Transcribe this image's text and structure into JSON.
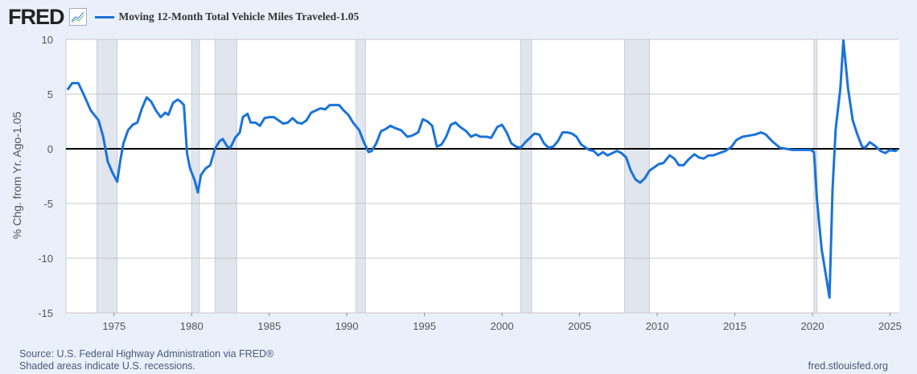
{
  "header": {
    "logo": "FRED",
    "logo_icon": "line-chart-icon"
  },
  "chart_data": {
    "type": "line",
    "title": "",
    "legend": [
      {
        "label": "Moving 12-Month Total Vehicle Miles Traveled-1.05",
        "color": "#1a73d9"
      }
    ],
    "legend_placement": "top-left",
    "xlabel": "",
    "ylabel": "% Chg. from Yr. Ago-1.05",
    "xlim": [
      1971.9,
      2025.6
    ],
    "ylim": [
      -15,
      10
    ],
    "yticks": [
      10,
      5,
      0,
      -5,
      -10,
      -15
    ],
    "ytick_labels": [
      "10",
      "5",
      "0",
      "-5",
      "-10",
      "-15"
    ],
    "xticks": [
      1975,
      1980,
      1985,
      1990,
      1995,
      2000,
      2005,
      2010,
      2015,
      2020,
      2025
    ],
    "xtick_labels": [
      "1975",
      "1980",
      "1985",
      "1990",
      "1995",
      "2000",
      "2005",
      "2010",
      "2015",
      "2020",
      "2025"
    ],
    "grid": true,
    "recessions": [
      [
        1973.9,
        1975.2
      ],
      [
        1980.0,
        1980.5
      ],
      [
        1981.5,
        1982.9
      ],
      [
        1990.6,
        1991.2
      ],
      [
        2001.2,
        2001.9
      ],
      [
        2007.9,
        2009.5
      ],
      [
        2020.1,
        2020.3
      ]
    ],
    "series": [
      {
        "name": "Moving 12-Month Total Vehicle Miles Traveled-1.05",
        "color": "#1a73d9",
        "points": [
          [
            1972.0,
            5.4
          ],
          [
            1972.3,
            6.0
          ],
          [
            1972.7,
            6.0
          ],
          [
            1973.0,
            5.1
          ],
          [
            1973.5,
            3.5
          ],
          [
            1974.0,
            2.6
          ],
          [
            1974.3,
            1.1
          ],
          [
            1974.6,
            -1.2
          ],
          [
            1974.9,
            -2.2
          ],
          [
            1975.2,
            -3.0
          ],
          [
            1975.4,
            -1.1
          ],
          [
            1975.6,
            0.5
          ],
          [
            1975.9,
            1.7
          ],
          [
            1976.2,
            2.2
          ],
          [
            1976.5,
            2.4
          ],
          [
            1976.8,
            3.7
          ],
          [
            1977.1,
            4.7
          ],
          [
            1977.4,
            4.3
          ],
          [
            1977.7,
            3.5
          ],
          [
            1978.0,
            2.9
          ],
          [
            1978.3,
            3.3
          ],
          [
            1978.5,
            3.1
          ],
          [
            1978.8,
            4.2
          ],
          [
            1979.1,
            4.5
          ],
          [
            1979.3,
            4.3
          ],
          [
            1979.5,
            4.0
          ],
          [
            1979.7,
            -0.4
          ],
          [
            1979.9,
            -1.8
          ],
          [
            1980.2,
            -2.9
          ],
          [
            1980.4,
            -4.0
          ],
          [
            1980.6,
            -2.4
          ],
          [
            1980.9,
            -1.8
          ],
          [
            1981.2,
            -1.5
          ],
          [
            1981.5,
            0.0
          ],
          [
            1981.8,
            0.7
          ],
          [
            1982.0,
            0.9
          ],
          [
            1982.3,
            0.2
          ],
          [
            1982.5,
            0.1
          ],
          [
            1982.8,
            1.0
          ],
          [
            1983.1,
            1.5
          ],
          [
            1983.3,
            2.9
          ],
          [
            1983.6,
            3.2
          ],
          [
            1983.8,
            2.4
          ],
          [
            1984.1,
            2.4
          ],
          [
            1984.4,
            2.1
          ],
          [
            1984.7,
            2.8
          ],
          [
            1985.0,
            2.9
          ],
          [
            1985.3,
            2.9
          ],
          [
            1985.6,
            2.6
          ],
          [
            1985.9,
            2.3
          ],
          [
            1986.2,
            2.4
          ],
          [
            1986.5,
            2.8
          ],
          [
            1986.8,
            2.4
          ],
          [
            1987.1,
            2.3
          ],
          [
            1987.4,
            2.6
          ],
          [
            1987.7,
            3.3
          ],
          [
            1988.0,
            3.5
          ],
          [
            1988.3,
            3.7
          ],
          [
            1988.6,
            3.6
          ],
          [
            1988.9,
            4.0
          ],
          [
            1989.1,
            4.0
          ],
          [
            1989.5,
            4.0
          ],
          [
            1989.8,
            3.5
          ],
          [
            1990.1,
            3.1
          ],
          [
            1990.4,
            2.4
          ],
          [
            1990.8,
            1.7
          ],
          [
            1991.1,
            0.6
          ],
          [
            1991.4,
            -0.3
          ],
          [
            1991.6,
            -0.2
          ],
          [
            1991.9,
            0.5
          ],
          [
            1992.2,
            1.6
          ],
          [
            1992.5,
            1.8
          ],
          [
            1992.8,
            2.1
          ],
          [
            1993.1,
            1.9
          ],
          [
            1993.5,
            1.7
          ],
          [
            1993.9,
            1.1
          ],
          [
            1994.2,
            1.2
          ],
          [
            1994.6,
            1.5
          ],
          [
            1994.9,
            2.7
          ],
          [
            1995.2,
            2.5
          ],
          [
            1995.5,
            2.1
          ],
          [
            1995.8,
            0.2
          ],
          [
            1996.1,
            0.4
          ],
          [
            1996.4,
            1.1
          ],
          [
            1996.7,
            2.2
          ],
          [
            1997.0,
            2.4
          ],
          [
            1997.3,
            2.0
          ],
          [
            1997.7,
            1.6
          ],
          [
            1998.0,
            1.1
          ],
          [
            1998.3,
            1.3
          ],
          [
            1998.6,
            1.1
          ],
          [
            1999.0,
            1.1
          ],
          [
            1999.3,
            1.0
          ],
          [
            1999.7,
            2.0
          ],
          [
            2000.0,
            2.2
          ],
          [
            2000.3,
            1.5
          ],
          [
            2000.6,
            0.5
          ],
          [
            2000.9,
            0.2
          ],
          [
            2001.2,
            0.1
          ],
          [
            2001.5,
            0.6
          ],
          [
            2001.8,
            1.0
          ],
          [
            2002.1,
            1.4
          ],
          [
            2002.4,
            1.3
          ],
          [
            2002.7,
            0.5
          ],
          [
            2003.0,
            0.1
          ],
          [
            2003.3,
            0.2
          ],
          [
            2003.6,
            0.7
          ],
          [
            2003.9,
            1.5
          ],
          [
            2004.2,
            1.5
          ],
          [
            2004.5,
            1.4
          ],
          [
            2004.8,
            1.1
          ],
          [
            2005.1,
            0.4
          ],
          [
            2005.3,
            0.2
          ],
          [
            2005.6,
            -0.1
          ],
          [
            2005.9,
            -0.2
          ],
          [
            2006.2,
            -0.6
          ],
          [
            2006.5,
            -0.3
          ],
          [
            2006.8,
            -0.6
          ],
          [
            2007.1,
            -0.4
          ],
          [
            2007.4,
            -0.2
          ],
          [
            2007.7,
            -0.4
          ],
          [
            2008.0,
            -0.8
          ],
          [
            2008.3,
            -2.0
          ],
          [
            2008.6,
            -2.8
          ],
          [
            2008.9,
            -3.1
          ],
          [
            2009.2,
            -2.7
          ],
          [
            2009.5,
            -2.0
          ],
          [
            2009.8,
            -1.7
          ],
          [
            2010.1,
            -1.4
          ],
          [
            2010.4,
            -1.3
          ],
          [
            2010.8,
            -0.6
          ],
          [
            2011.1,
            -0.9
          ],
          [
            2011.4,
            -1.5
          ],
          [
            2011.7,
            -1.5
          ],
          [
            2012.0,
            -1.0
          ],
          [
            2012.4,
            -0.5
          ],
          [
            2012.7,
            -0.8
          ],
          [
            2013.0,
            -0.9
          ],
          [
            2013.3,
            -0.6
          ],
          [
            2013.6,
            -0.6
          ],
          [
            2014.0,
            -0.4
          ],
          [
            2014.4,
            -0.2
          ],
          [
            2014.8,
            0.2
          ],
          [
            2015.1,
            0.8
          ],
          [
            2015.5,
            1.1
          ],
          [
            2015.9,
            1.2
          ],
          [
            2016.3,
            1.3
          ],
          [
            2016.7,
            1.5
          ],
          [
            2017.0,
            1.3
          ],
          [
            2017.4,
            0.7
          ],
          [
            2017.9,
            0.1
          ],
          [
            2018.3,
            0.0
          ],
          [
            2018.7,
            -0.1
          ],
          [
            2019.1,
            -0.1
          ],
          [
            2019.5,
            -0.1
          ],
          [
            2019.9,
            -0.1
          ],
          [
            2020.1,
            -0.3
          ],
          [
            2020.3,
            -4.8
          ],
          [
            2020.6,
            -9.2
          ],
          [
            2020.9,
            -11.8
          ],
          [
            2021.1,
            -13.6
          ],
          [
            2021.3,
            -3.7
          ],
          [
            2021.5,
            1.8
          ],
          [
            2021.8,
            5.5
          ],
          [
            2022.0,
            9.9
          ],
          [
            2022.3,
            5.5
          ],
          [
            2022.6,
            2.6
          ],
          [
            2022.9,
            1.3
          ],
          [
            2023.2,
            0.2
          ],
          [
            2023.4,
            0.1
          ],
          [
            2023.7,
            0.6
          ],
          [
            2024.0,
            0.3
          ],
          [
            2024.4,
            -0.2
          ],
          [
            2024.7,
            -0.4
          ],
          [
            2025.0,
            -0.1
          ],
          [
            2025.3,
            -0.2
          ],
          [
            2025.5,
            -0.1
          ]
        ]
      }
    ]
  },
  "footer": {
    "source": "Source: U.S. Federal Highway Administration via FRED®",
    "note": "Shaded areas indicate U.S. recessions.",
    "url": "fred.stlouisfed.org"
  }
}
